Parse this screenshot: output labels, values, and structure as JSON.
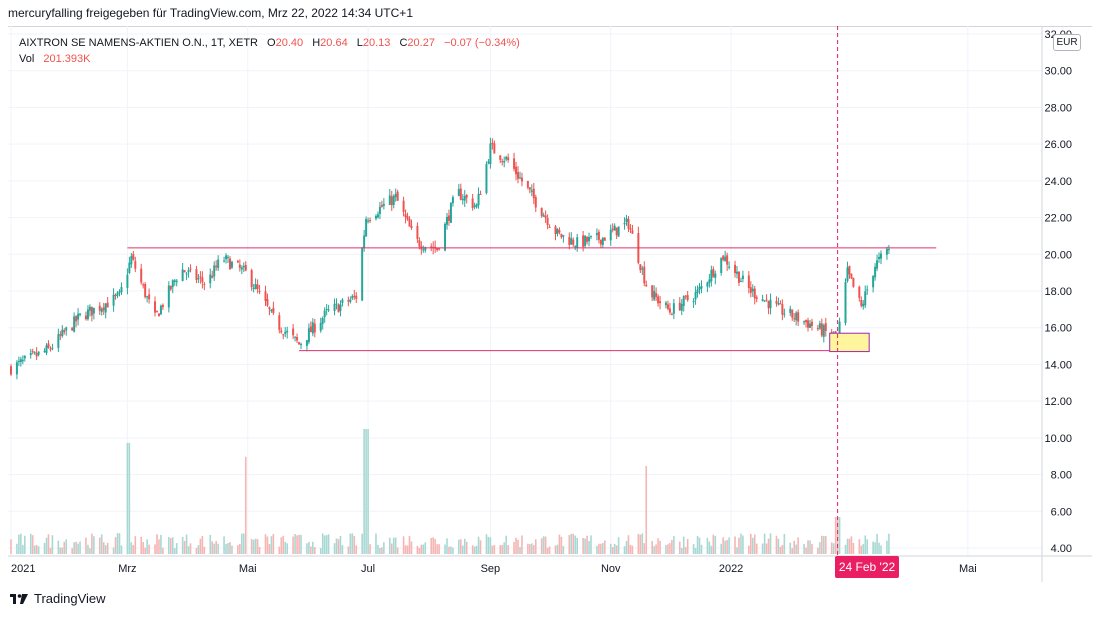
{
  "header": {
    "publisher": "mercuryfalling freigegeben für TradingView.com, Mrz 22, 2022 14:34 UTC+1"
  },
  "legend": {
    "symbol": "AIXTRON SE NAMENS-AKTIEN O.N., 1T, XETR",
    "o_label": "O",
    "o_value": "20.40",
    "h_label": "H",
    "h_value": "20.64",
    "l_label": "L",
    "l_value": "20.13",
    "c_label": "C",
    "c_value": "20.27",
    "change": "−0.07 (−0.34%)",
    "vol_label": "Vol",
    "vol_value": "201.393K"
  },
  "currency": "EUR",
  "crosshair_date": "24 Feb '22",
  "footer": {
    "brand": "TradingView"
  },
  "colors": {
    "up": "#26a69a",
    "down": "#ef5350",
    "vol_up": "#a8d8d3",
    "vol_down": "#f5b5b3",
    "annotation_line": "#e0316e",
    "highlight_fill": "#fff59d",
    "crosshair": "#e91e63",
    "grid": "#f0f3fa"
  },
  "chart_data": {
    "type": "candlestick",
    "price_axis": {
      "min": 4,
      "max": 32,
      "step": 2,
      "ticks": [
        "4.00",
        "6.00",
        "8.00",
        "10.00",
        "12.00",
        "14.00",
        "16.00",
        "18.00",
        "20.00",
        "22.00",
        "24.00",
        "26.00",
        "28.00",
        "30.00",
        "32.00"
      ]
    },
    "time_axis": {
      "start": "2021-01-01",
      "end": "2022-05-31",
      "ticks": [
        {
          "label": "2021",
          "date": "2021-01-01"
        },
        {
          "label": "Mrz",
          "date": "2021-03-01"
        },
        {
          "label": "Mai",
          "date": "2021-05-01"
        },
        {
          "label": "Jul",
          "date": "2021-07-01"
        },
        {
          "label": "Sep",
          "date": "2021-09-01"
        },
        {
          "label": "Nov",
          "date": "2021-11-01"
        },
        {
          "label": "2022",
          "date": "2022-01-01"
        },
        {
          "label": "Mai",
          "date": "2022-05-01"
        }
      ]
    },
    "price_path": [
      {
        "date": "2021-01-01",
        "close": 13.8
      },
      {
        "date": "2021-01-20",
        "close": 14.8
      },
      {
        "date": "2021-02-05",
        "close": 16.6
      },
      {
        "date": "2021-02-25",
        "close": 17.7
      },
      {
        "date": "2021-03-03",
        "close": 19.8
      },
      {
        "date": "2021-03-15",
        "close": 16.5
      },
      {
        "date": "2021-03-28",
        "close": 19.2
      },
      {
        "date": "2021-04-10",
        "close": 18.4
      },
      {
        "date": "2021-04-18",
        "close": 19.8
      },
      {
        "date": "2021-05-01",
        "close": 18.9
      },
      {
        "date": "2021-05-15",
        "close": 16.3
      },
      {
        "date": "2021-05-27",
        "close": 15.1
      },
      {
        "date": "2021-06-10",
        "close": 16.8
      },
      {
        "date": "2021-06-25",
        "close": 17.7
      },
      {
        "date": "2021-06-30",
        "close": 22.0
      },
      {
        "date": "2021-07-15",
        "close": 23.1
      },
      {
        "date": "2021-07-25",
        "close": 20.7
      },
      {
        "date": "2021-08-05",
        "close": 20.3
      },
      {
        "date": "2021-08-15",
        "close": 23.4
      },
      {
        "date": "2021-08-25",
        "close": 22.6
      },
      {
        "date": "2021-09-01",
        "close": 25.8
      },
      {
        "date": "2021-09-10",
        "close": 25.1
      },
      {
        "date": "2021-09-25",
        "close": 22.7
      },
      {
        "date": "2021-10-05",
        "close": 21.1
      },
      {
        "date": "2021-10-15",
        "close": 20.6
      },
      {
        "date": "2021-10-28",
        "close": 20.9
      },
      {
        "date": "2021-11-10",
        "close": 21.7
      },
      {
        "date": "2021-11-20",
        "close": 18.0
      },
      {
        "date": "2021-12-01",
        "close": 16.9
      },
      {
        "date": "2021-12-15",
        "close": 17.9
      },
      {
        "date": "2021-12-28",
        "close": 19.9
      },
      {
        "date": "2022-01-10",
        "close": 18.1
      },
      {
        "date": "2022-01-25",
        "close": 17.0
      },
      {
        "date": "2022-02-10",
        "close": 16.2
      },
      {
        "date": "2022-02-24",
        "close": 15.4
      },
      {
        "date": "2022-03-01",
        "close": 19.0
      },
      {
        "date": "2022-03-08",
        "close": 17.1
      },
      {
        "date": "2022-03-15",
        "close": 19.4
      },
      {
        "date": "2022-03-22",
        "close": 20.27
      }
    ],
    "volume_scale_max": 10.8,
    "volume_spikes": [
      {
        "date": "2021-03-01",
        "value": 9.6
      },
      {
        "date": "2021-05-01",
        "value": 8.4
      },
      {
        "date": "2021-06-30",
        "value": 10.8
      },
      {
        "date": "2021-11-20",
        "value": 7.6
      },
      {
        "date": "2022-02-24",
        "value": 3.2
      }
    ],
    "annotations": {
      "resistance_line": {
        "price": 20.35,
        "from": "2021-03-01",
        "to": "2022-04-15"
      },
      "support_line": {
        "price": 14.75,
        "from": "2021-05-27",
        "to": "2022-02-24"
      },
      "highlight_box": {
        "from": "2022-02-20",
        "to": "2022-03-12",
        "low": 14.7,
        "high": 15.7
      },
      "crosshair_date": "2022-02-24"
    }
  }
}
